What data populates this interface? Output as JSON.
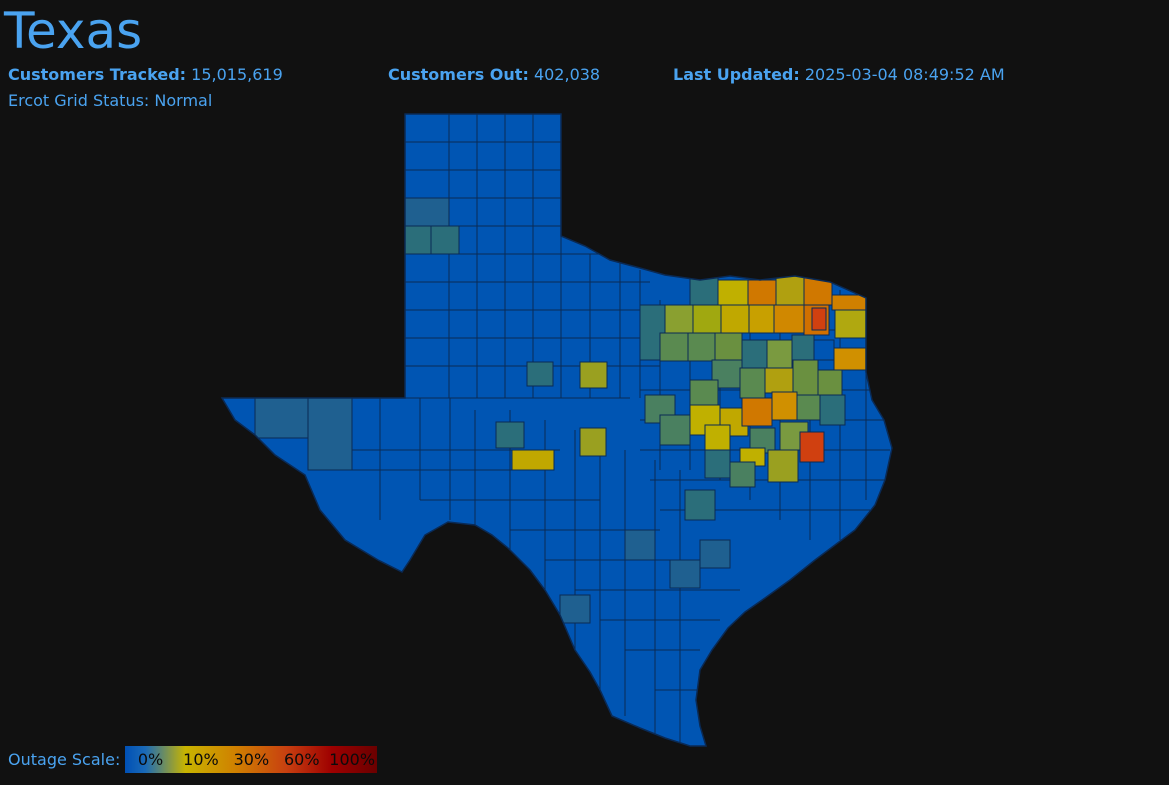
{
  "header": {
    "title": "Texas",
    "customers_tracked_label": "Customers Tracked:",
    "customers_tracked_value": "15,015,619",
    "customers_out_label": "Customers Out:",
    "customers_out_value": "402,038",
    "last_updated_label": "Last Updated:",
    "last_updated_value": "2025-03-04 08:49:52 AM",
    "grid_status": "Ercot Grid Status: Normal"
  },
  "legend": {
    "label": "Outage Scale:",
    "stops": [
      "0%",
      "10%",
      "30%",
      "60%",
      "100%"
    ]
  },
  "colors": {
    "text": "#4aa3f0",
    "background": "#111111",
    "county_0": "#0055b3",
    "county_low": "#1f6090",
    "county_teal": "#2b6e7a",
    "county_greenish": "#5a8a50",
    "county_yellow": "#c0b000",
    "county_orange": "#d07800",
    "county_red": "#d04010",
    "county_border": "#0a2a55"
  }
}
